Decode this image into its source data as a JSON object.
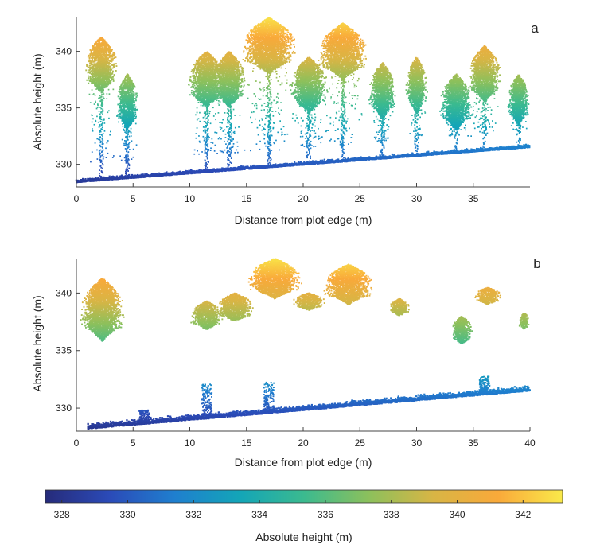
{
  "chart_data": [
    {
      "type": "scatter",
      "panel_label": "a",
      "xlabel": "Distance from plot edge (m)",
      "ylabel": "Absolute height (m)",
      "xlim": [
        0,
        40
      ],
      "ylim": [
        328,
        343
      ],
      "xticks": [
        "0",
        "5",
        "10",
        "15",
        "20",
        "25",
        "30",
        "35"
      ],
      "yticks": [
        "330",
        "335",
        "340"
      ],
      "ground": {
        "x": [
          0,
          40
        ],
        "y": [
          328.4,
          331.5
        ]
      },
      "trees": [
        {
          "x": 2.2,
          "top": 341.3,
          "width": 3.0
        },
        {
          "x": 4.5,
          "top": 338.0,
          "width": 2.0
        },
        {
          "x": 11.5,
          "top": 340.0,
          "width": 3.5
        },
        {
          "x": 13.5,
          "top": 340.0,
          "width": 3.0
        },
        {
          "x": 17.0,
          "top": 343.0,
          "width": 5.0
        },
        {
          "x": 20.5,
          "top": 339.5,
          "width": 3.5
        },
        {
          "x": 23.5,
          "top": 342.5,
          "width": 4.5
        },
        {
          "x": 27.0,
          "top": 339.0,
          "width": 2.5
        },
        {
          "x": 30.0,
          "top": 339.5,
          "width": 2.0
        },
        {
          "x": 33.5,
          "top": 338.0,
          "width": 3.0
        },
        {
          "x": 36.0,
          "top": 340.5,
          "width": 3.0
        },
        {
          "x": 39.0,
          "top": 338.0,
          "width": 2.0
        }
      ]
    },
    {
      "type": "scatter",
      "panel_label": "b",
      "xlabel": "Distance from plot edge (m)",
      "ylabel": "Absolute height (m)",
      "xlim": [
        0,
        40
      ],
      "ylim": [
        328,
        343
      ],
      "xticks": [
        "0",
        "5",
        "10",
        "15",
        "20",
        "25",
        "30",
        "35",
        "40"
      ],
      "yticks": [
        "330",
        "335",
        "340"
      ],
      "ground": {
        "x": [
          1,
          40
        ],
        "y": [
          328.2,
          331.5
        ]
      },
      "crowns": [
        {
          "x": 2.3,
          "top": 341.3,
          "width": 4.0,
          "depth": 5.5
        },
        {
          "x": 11.5,
          "top": 339.3,
          "width": 3.0,
          "depth": 2.5
        },
        {
          "x": 14.0,
          "top": 340.0,
          "width": 3.5,
          "depth": 2.5
        },
        {
          "x": 17.5,
          "top": 343.0,
          "width": 5.0,
          "depth": 3.5
        },
        {
          "x": 20.5,
          "top": 340.0,
          "width": 3.0,
          "depth": 1.5
        },
        {
          "x": 24.0,
          "top": 342.5,
          "width": 4.5,
          "depth": 3.5
        },
        {
          "x": 28.5,
          "top": 339.5,
          "width": 2.0,
          "depth": 1.5
        },
        {
          "x": 34.0,
          "top": 338.0,
          "width": 2.0,
          "depth": 2.5
        },
        {
          "x": 36.3,
          "top": 340.5,
          "width": 2.5,
          "depth": 1.5
        },
        {
          "x": 39.5,
          "top": 338.3,
          "width": 1.0,
          "depth": 1.5
        }
      ]
    }
  ],
  "colorbar": {
    "label": "Absolute height (m)",
    "range": [
      327.5,
      343.2
    ],
    "ticks": [
      "328",
      "330",
      "332",
      "334",
      "336",
      "338",
      "340",
      "342"
    ],
    "colors": [
      "#262b7a",
      "#2b4bb8",
      "#1f7fcf",
      "#13a5b8",
      "#3bba8f",
      "#8cc05c",
      "#d8b545",
      "#f9a93a",
      "#f9e94a"
    ]
  }
}
